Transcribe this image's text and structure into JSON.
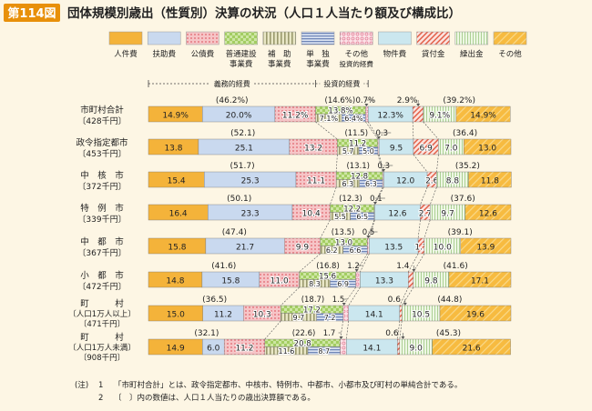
{
  "header": {
    "badge": "第114図",
    "title": "団体規模別歳出（性質別）決算の状況（人口１人当たり額及び構成比）"
  },
  "legend": [
    {
      "label": "人件費",
      "color": "#f4b33a",
      "pattern": "solid"
    },
    {
      "label": "扶助費",
      "color": "#c9d9ef",
      "pattern": "solid"
    },
    {
      "label": "公債費",
      "color": "#f6c5c7",
      "pattern": "dots"
    },
    {
      "label": "普通建設\n事業費",
      "color": "#cde6a3",
      "pattern": "checker"
    },
    {
      "label": "補　助\n事業費",
      "color": "#e9e7c6",
      "pattern": "vlines"
    },
    {
      "label": "単　独\n事業費",
      "color": "#b9c7e2",
      "pattern": "hlines"
    },
    {
      "label": "その他\n投資的経費",
      "color": "#fbe2e7",
      "pattern": "circles"
    },
    {
      "label": "物件費",
      "color": "#cbe7ef",
      "pattern": "solid"
    },
    {
      "label": "貸付金",
      "color": "#fbe4e0",
      "pattern": "diag"
    },
    {
      "label": "繰出金",
      "color": "#e9f5df",
      "pattern": "vthin"
    },
    {
      "label": "その他",
      "color": "#f7bb40",
      "pattern": "diagwide"
    }
  ],
  "brackets": {
    "gimu": "義務的経費",
    "toushi": "投資的経費"
  },
  "chart_data": {
    "type": "stacked_bar_horizontal",
    "title": "団体規模別歳出（性質別）決算の状況（人口１人当たり額及び構成比）",
    "segments": [
      "人件費",
      "扶助費",
      "公債費",
      "普通建設事業費",
      "その他投資的経費",
      "物件費",
      "貸付金",
      "繰出金",
      "その他"
    ],
    "rows": [
      {
        "name": "市町村合計",
        "sub": "〔428千円〕",
        "values": [
          14.9,
          20.0,
          11.2,
          13.8,
          0.7,
          12.3,
          2.9,
          9.1,
          14.9
        ],
        "labels": [
          "14.9%",
          "20.0%",
          "11.2%",
          "13.8%",
          "",
          "12.3%",
          "",
          "9.1%",
          "14.9%"
        ],
        "split": [
          "7.1%",
          "6.4%"
        ],
        "above": {
          "gimu": "(46.2%)",
          "toushi": "(14.6%)",
          "other_inv": "0.7%",
          "loan": "2.9%",
          "misc": "(39.2%)"
        }
      },
      {
        "name": "政令指定都市",
        "sub": "〔453千円〕",
        "values": [
          13.8,
          25.1,
          13.2,
          11.2,
          0.3,
          9.5,
          6.9,
          7.0,
          13.0
        ],
        "labels": [
          "13.8",
          "25.1",
          "13.2",
          "11.2",
          "",
          "9.5",
          "6.9",
          "7.0",
          "13.0"
        ],
        "split": [
          "5.7",
          "5.0"
        ],
        "above": {
          "gimu": "(52.1)",
          "toushi": "(11.5)",
          "other_inv": "0.3",
          "loan": "",
          "misc": "(36.4)"
        }
      },
      {
        "name": "中　核　市",
        "sub": "〔372千円〕",
        "values": [
          15.4,
          25.3,
          11.1,
          12.8,
          0.3,
          12.0,
          2.6,
          8.8,
          11.8
        ],
        "labels": [
          "15.4",
          "25.3",
          "11.1",
          "12.8",
          "",
          "12.0",
          "2.6",
          "8.8",
          "11.8"
        ],
        "split": [
          "6.3",
          "6.3"
        ],
        "above": {
          "gimu": "(51.7)",
          "toushi": "(13.1)",
          "other_inv": "0.3",
          "loan": "",
          "misc": "(35.2)"
        }
      },
      {
        "name": "特　例　市",
        "sub": "〔339千円〕",
        "values": [
          16.4,
          23.3,
          10.4,
          12.2,
          0.1,
          12.6,
          2.7,
          9.7,
          12.6
        ],
        "labels": [
          "16.4",
          "23.3",
          "10.4",
          "12.2",
          "",
          "12.6",
          "2.7",
          "9.7",
          "12.6"
        ],
        "split": [
          "5.5",
          "6.5"
        ],
        "above": {
          "gimu": "(50.1)",
          "toushi": "(12.3)",
          "other_inv": "0.1",
          "loan": "",
          "misc": "(37.6)"
        }
      },
      {
        "name": "中　都　市",
        "sub": "〔367千円〕",
        "values": [
          15.8,
          21.7,
          9.9,
          13.0,
          0.5,
          13.5,
          1.7,
          10.0,
          13.9
        ],
        "labels": [
          "15.8",
          "21.7",
          "9.9",
          "13.0",
          "",
          "13.5",
          "1.7",
          "10.0",
          "13.9"
        ],
        "split": [
          "6.2",
          "6.6"
        ],
        "above": {
          "gimu": "(47.4)",
          "toushi": "(13.5)",
          "other_inv": "0.5",
          "loan": "",
          "misc": "(39.1)"
        }
      },
      {
        "name": "小　都　市",
        "sub": "〔472千円〕",
        "values": [
          14.8,
          15.8,
          11.0,
          15.6,
          1.2,
          13.3,
          1.4,
          9.8,
          17.1
        ],
        "labels": [
          "14.8",
          "15.8",
          "11.0",
          "15.6",
          "",
          "13.3",
          "",
          "9.8",
          "17.1"
        ],
        "split": [
          "8.3",
          "6.9"
        ],
        "above": {
          "gimu": "(41.6)",
          "toushi": "(16.8)",
          "other_inv": "1.2",
          "loan": "1.4",
          "misc": "(41.6)"
        }
      },
      {
        "name": "町　　　村\n〔人口1万人以上〕",
        "sub": "〔471千円〕",
        "values": [
          15.0,
          11.2,
          10.3,
          17.2,
          1.5,
          14.1,
          0.6,
          10.5,
          19.6
        ],
        "labels": [
          "15.0",
          "11.2",
          "10.3",
          "17.2",
          "",
          "14.1",
          "",
          "10.5",
          "19.6"
        ],
        "split": [
          "9.7",
          "7.2"
        ],
        "above": {
          "gimu": "(36.5)",
          "toushi": "(18.7)",
          "other_inv": "1.5",
          "loan": "0.6",
          "misc": "(44.8)"
        }
      },
      {
        "name": "町　　　村\n〔人口1万人未満〕",
        "sub": "〔908千円〕",
        "values": [
          14.9,
          6.0,
          11.2,
          20.8,
          1.7,
          14.1,
          0.6,
          9.0,
          21.6
        ],
        "labels": [
          "14.9",
          "6.0",
          "11.2",
          "20.8",
          "",
          "14.1",
          "",
          "9.0",
          "21.6"
        ],
        "split": [
          "11.6",
          "8.7"
        ],
        "above": {
          "gimu": "(32.1)",
          "toushi": "(22.6)",
          "other_inv": "1.7",
          "loan": "0.6",
          "misc": "(45.3)"
        }
      }
    ]
  },
  "notes": [
    {
      "mark": "(注)",
      "num": "1",
      "text": "「市町村合計」とは、政令指定都市、中核市、特例市、中都市、小都市及び町村の単純合計である。"
    },
    {
      "mark": "",
      "num": "2",
      "text": "〔　〕内の数値は、人口１人当たりの歳出決算額である。"
    }
  ]
}
